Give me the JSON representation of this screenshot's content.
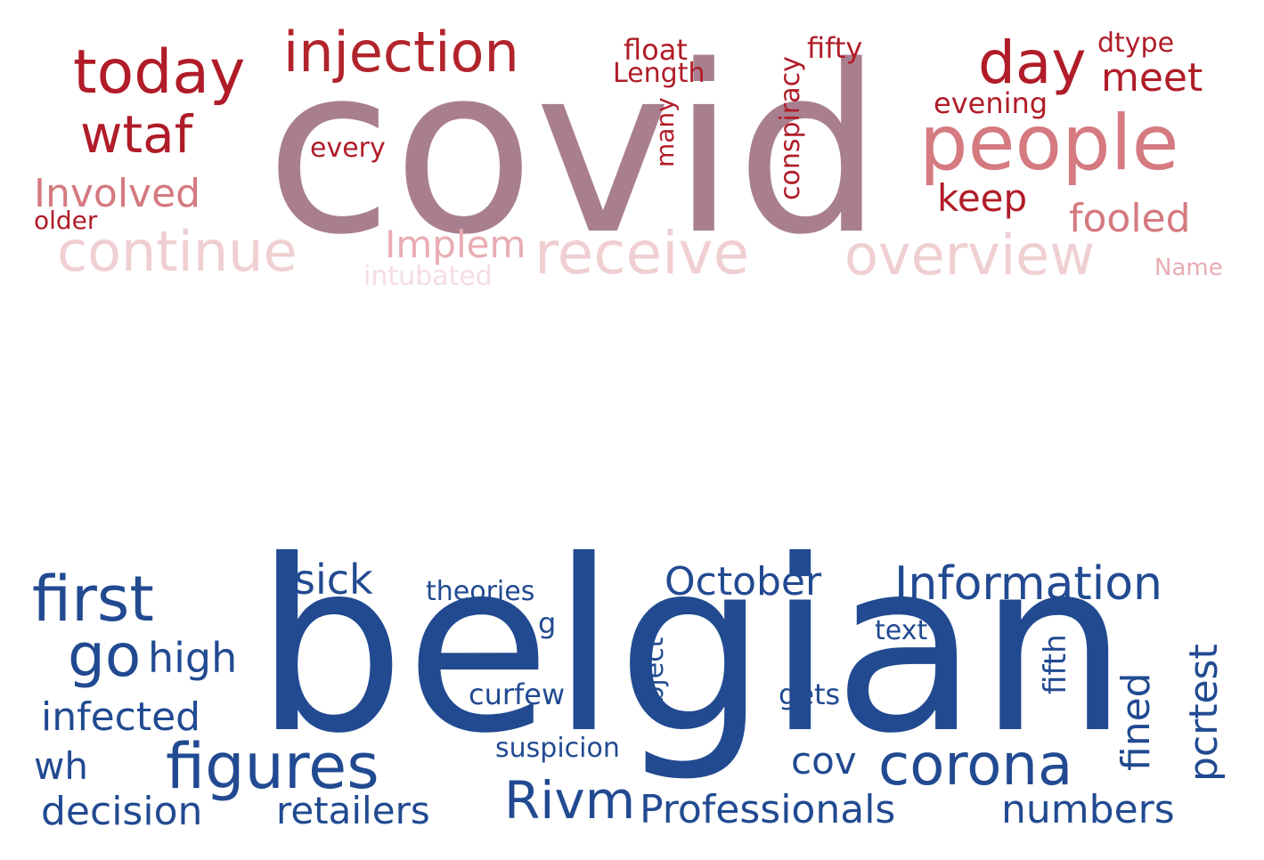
{
  "clouds": [
    {
      "name": "red-cloud",
      "words": [
        {
          "text": "covid",
          "color": "#a97f90"
        },
        {
          "text": "people",
          "color": "#d47a80"
        },
        {
          "text": "injection",
          "color": "#b2242c"
        },
        {
          "text": "today",
          "color": "#b01c28"
        },
        {
          "text": "day",
          "color": "#b01c28"
        },
        {
          "text": "wtaf",
          "color": "#b01c28"
        },
        {
          "text": "meet",
          "color": "#b01c28"
        },
        {
          "text": "float",
          "color": "#b01c28"
        },
        {
          "text": "Length",
          "color": "#b01c28"
        },
        {
          "text": "fifty",
          "color": "#b01c28"
        },
        {
          "text": "dtype",
          "color": "#b01c28"
        },
        {
          "text": "evening",
          "color": "#b01c28"
        },
        {
          "text": "every",
          "color": "#b01c28"
        },
        {
          "text": "keep",
          "color": "#b01c28"
        },
        {
          "text": "many",
          "color": "#b01c28"
        },
        {
          "text": "conspiracy",
          "color": "#b01c28"
        },
        {
          "text": "Involved",
          "color": "#d47a80"
        },
        {
          "text": "older",
          "color": "#b01c28"
        },
        {
          "text": "fooled",
          "color": "#d47a80"
        },
        {
          "text": "continue",
          "color": "#f0cfd2"
        },
        {
          "text": "Implem",
          "color": "#e8acb2"
        },
        {
          "text": "receive",
          "color": "#f0cfd2"
        },
        {
          "text": "overview",
          "color": "#f0cfd2"
        },
        {
          "text": "Name",
          "color": "#e8acb2"
        },
        {
          "text": "intubated",
          "color": "#f5dde0"
        }
      ]
    },
    {
      "name": "blue-cloud",
      "words": [
        {
          "text": "belgian",
          "color": "#214a91"
        },
        {
          "text": "first",
          "color": "#214a91"
        },
        {
          "text": "sick",
          "color": "#214a91"
        },
        {
          "text": "theories",
          "color": "#214a91"
        },
        {
          "text": "October",
          "color": "#214a91"
        },
        {
          "text": "Information",
          "color": "#214a91"
        },
        {
          "text": "go",
          "color": "#214a91"
        },
        {
          "text": "high",
          "color": "#214a91"
        },
        {
          "text": "g",
          "color": "#214a91"
        },
        {
          "text": "object",
          "color": "#214a91"
        },
        {
          "text": "text",
          "color": "#214a91"
        },
        {
          "text": "fifth",
          "color": "#214a91"
        },
        {
          "text": "pcrtest",
          "color": "#214a91"
        },
        {
          "text": "infected",
          "color": "#214a91"
        },
        {
          "text": "curfew",
          "color": "#214a91"
        },
        {
          "text": "gets",
          "color": "#214a91"
        },
        {
          "text": "fined",
          "color": "#214a91"
        },
        {
          "text": "wh",
          "color": "#214a91"
        },
        {
          "text": "figures",
          "color": "#214a91"
        },
        {
          "text": "suspicion",
          "color": "#214a91"
        },
        {
          "text": "cov",
          "color": "#214a91"
        },
        {
          "text": "corona",
          "color": "#214a91"
        },
        {
          "text": "decision",
          "color": "#214a91"
        },
        {
          "text": "retailers",
          "color": "#214a91"
        },
        {
          "text": "Rivm",
          "color": "#214a91"
        },
        {
          "text": "Professionals",
          "color": "#214a91"
        },
        {
          "text": "numbers",
          "color": "#214a91"
        }
      ]
    }
  ]
}
